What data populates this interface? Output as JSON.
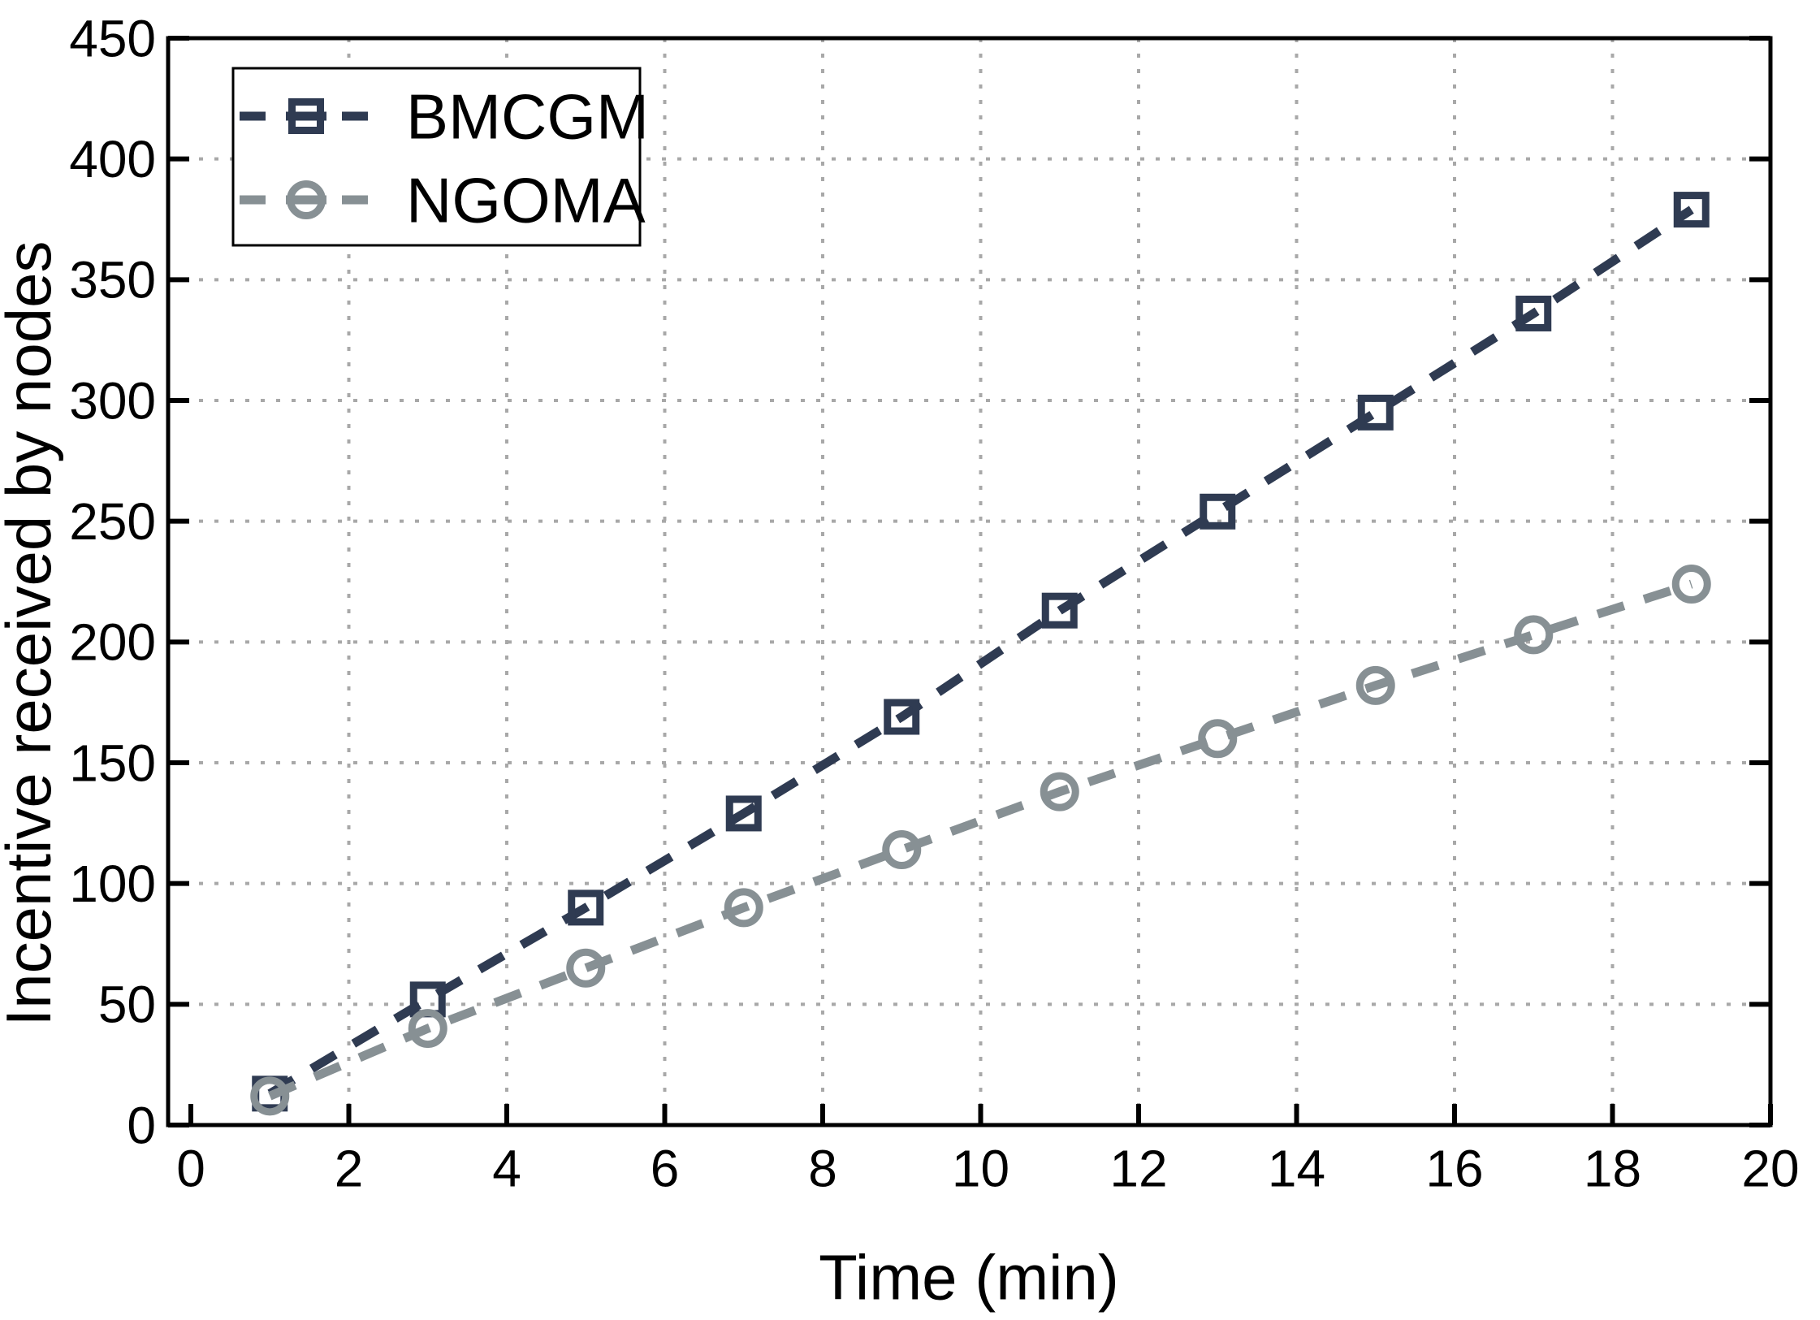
{
  "chart_data": {
    "type": "line",
    "title": "",
    "xlabel": "Time (min)",
    "ylabel": "Incentive received by nodes",
    "x": [
      1,
      3,
      5,
      7,
      9,
      11,
      13,
      15,
      17,
      19
    ],
    "series": [
      {
        "name": "BMCGM",
        "marker": "open-square",
        "linestyle": "dashed",
        "color": "#2f3b52",
        "values": [
          13,
          52,
          90,
          129,
          169,
          213,
          254,
          295,
          336,
          379
        ]
      },
      {
        "name": "NGOMA",
        "marker": "open-circle",
        "linestyle": "dashed",
        "color": "#879094",
        "values": [
          12,
          40,
          65,
          90,
          114,
          138,
          160,
          182,
          203,
          224
        ]
      }
    ],
    "xlim": [
      -0.3,
      20
    ],
    "ylim": [
      0,
      450
    ],
    "xticks": [
      0,
      2,
      4,
      6,
      8,
      10,
      12,
      14,
      16,
      18,
      20
    ],
    "yticks": [
      0,
      50,
      100,
      150,
      200,
      250,
      300,
      350,
      400,
      450
    ],
    "grid": true,
    "grid_style": "dotted",
    "grid_color": "#a8a8a8",
    "axis_color": "#000000",
    "background_color": "#ffffff",
    "legend_position": "top-left",
    "legend_entries": [
      "BMCGM",
      "NGOMA"
    ]
  }
}
